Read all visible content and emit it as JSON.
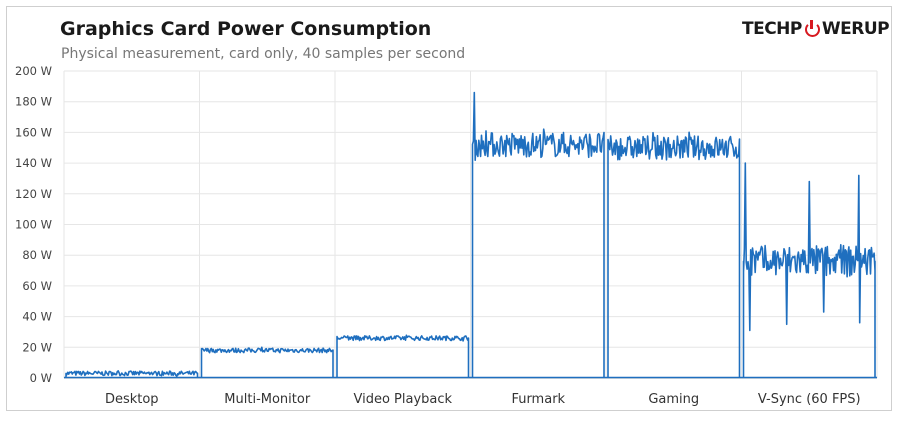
{
  "brand": {
    "logo_left": "TECHP",
    "logo_right": "WERUP"
  },
  "chart_data": {
    "type": "line",
    "title": "Graphics  Card Power Consumption",
    "subtitle": "Physical measurement, card only, 40 samples per second",
    "ylabel": "",
    "xlabel": "",
    "ylim": [
      0,
      200
    ],
    "yticks": [
      "0 W",
      "20 W",
      "40 W",
      "60 W",
      "80 W",
      "100 W",
      "120 W",
      "140 W",
      "160 W",
      "180 W",
      "200 W"
    ],
    "grid": true,
    "line_color": "#1f6fbf",
    "categories": [
      "Desktop",
      "Multi-Monitor",
      "Video Playback",
      "Furmark",
      "Gaming",
      "V-Sync (60 FPS)"
    ],
    "series": [
      {
        "category": "Desktop",
        "mean_w": 3,
        "low_w": 1,
        "high_w": 5,
        "spike_w": null
      },
      {
        "category": "Multi-Monitor",
        "mean_w": 18,
        "low_w": 16,
        "high_w": 20,
        "spike_w": null
      },
      {
        "category": "Video Playback",
        "mean_w": 26,
        "low_w": 24,
        "high_w": 28,
        "spike_w": null
      },
      {
        "category": "Furmark",
        "mean_w": 152,
        "low_w": 141,
        "high_w": 163,
        "spike_w": 186
      },
      {
        "category": "Gaming",
        "mean_w": 150,
        "low_w": 140,
        "high_w": 161,
        "spike_w": null
      },
      {
        "category": "V-Sync (60 FPS)",
        "mean_w": 76,
        "low_w": 63,
        "high_w": 91,
        "spike_w": 140,
        "extra_spikes_w": [
          128,
          132
        ],
        "dips_w": [
          31,
          35,
          43,
          36
        ]
      }
    ]
  }
}
